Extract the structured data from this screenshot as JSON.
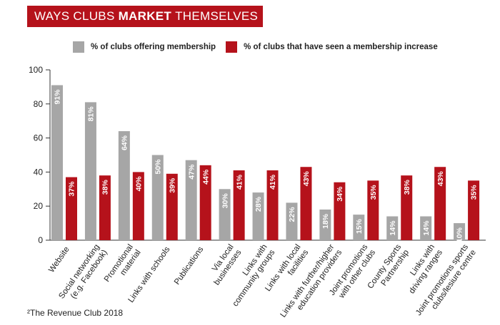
{
  "header": {
    "title_pre": "WAYS CLUBS",
    "title_bold": "MARKET",
    "title_post": "THEMSELVES"
  },
  "colors": {
    "series1": "#a6a6a6",
    "series2": "#b5121b",
    "banner": "#b5121b"
  },
  "source": "²The Revenue Club 2018",
  "chart_data": {
    "type": "bar",
    "title": "WAYS CLUBS MARKET THEMSELVES",
    "ylim": [
      0,
      100
    ],
    "yticks": [
      0,
      20,
      40,
      60,
      80,
      100
    ],
    "categories": [
      [
        "Website"
      ],
      [
        "Social networking",
        "(e.g. Facebook)"
      ],
      [
        "Promotional",
        "material"
      ],
      [
        "Links with schools"
      ],
      [
        "Publications"
      ],
      [
        "Via local",
        "businesses"
      ],
      [
        "Links with",
        "community groups"
      ],
      [
        "Links with local",
        "facilities"
      ],
      [
        "Links with further/higher",
        "education providers"
      ],
      [
        "Joint promotions",
        "with other clubs"
      ],
      [
        "County Sports",
        "Partnership"
      ],
      [
        "Links with",
        "driving ranges"
      ],
      [
        "Joint promotions sports",
        "clubs/lesiure centre"
      ]
    ],
    "series": [
      {
        "name": "% of clubs offering membership",
        "color": "#a6a6a6",
        "values": [
          91,
          81,
          64,
          50,
          47,
          30,
          28,
          22,
          18,
          15,
          14,
          14,
          10
        ]
      },
      {
        "name": "% of clubs that have seen a membership increase",
        "color": "#b5121b",
        "values": [
          37,
          38,
          40,
          39,
          44,
          41,
          41,
          43,
          34,
          35,
          38,
          43,
          35
        ]
      }
    ],
    "value_suffix": "%",
    "legend": "top"
  }
}
